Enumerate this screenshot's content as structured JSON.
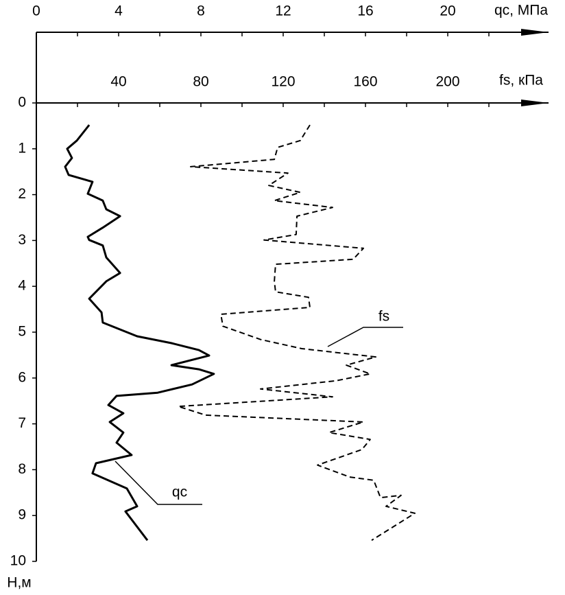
{
  "chart_data": {
    "type": "line",
    "orientation": "vertical",
    "x_label": "qc, МПа",
    "x2_label": "fs, кПа",
    "y_label": "Н,м",
    "xlim": [
      0,
      25
    ],
    "xticks": [
      0,
      4,
      8,
      12,
      16,
      20
    ],
    "xminorticks": [
      2,
      6,
      10,
      14,
      18,
      22
    ],
    "x2lim": [
      0,
      250
    ],
    "x2ticks": [
      40,
      80,
      120,
      160,
      200
    ],
    "x2minorticks": [
      20,
      60,
      100,
      140,
      180,
      220
    ],
    "ylim": [
      0,
      10
    ],
    "yticks": [
      0,
      1,
      2,
      3,
      4,
      5,
      6,
      7,
      8,
      9,
      10
    ],
    "y_inverted": true,
    "series": [
      {
        "name": "qc",
        "color": "#000000",
        "style": "solid",
        "axis": "x",
        "values": [
          2.57,
          1.97,
          1.5,
          1.73,
          1.4,
          1.57,
          2.73,
          2.5,
          3.23,
          3.4,
          4.07,
          3.23,
          2.5,
          2.57,
          3.23,
          3.4,
          4.07,
          3.4,
          2.57,
          3.17,
          3.23,
          4.9,
          6.57,
          7.9,
          8.4,
          6.57,
          7.9,
          8.63,
          7.57,
          5.9,
          3.9,
          3.5,
          4.23,
          3.57,
          4.23,
          3.9,
          4.63,
          2.9,
          2.73,
          4.4,
          4.9,
          4.33,
          5.4
        ],
        "depth": [
          0.48,
          0.82,
          1.0,
          1.2,
          1.39,
          1.57,
          1.72,
          1.98,
          2.13,
          2.32,
          2.47,
          2.72,
          2.92,
          2.99,
          3.11,
          3.37,
          3.71,
          3.89,
          4.27,
          4.57,
          4.79,
          5.09,
          5.24,
          5.39,
          5.51,
          5.72,
          5.81,
          5.91,
          6.14,
          6.32,
          6.39,
          6.59,
          6.77,
          6.96,
          7.19,
          7.41,
          7.68,
          7.86,
          8.08,
          8.41,
          8.8,
          8.91,
          9.54
        ]
      },
      {
        "name": "fs",
        "color": "#000000",
        "style": "dashed",
        "axis": "x2",
        "values": [
          133,
          128.3,
          117.3,
          115.7,
          75,
          122.3,
          113,
          128.3,
          115.7,
          144,
          126.7,
          126.3,
          110.7,
          159,
          154,
          116.3,
          115.7,
          116.3,
          132.3,
          133,
          89.7,
          90.7,
          109,
          129,
          165,
          150.7,
          162.3,
          145.7,
          109,
          144,
          69,
          82.3,
          159,
          142.3,
          162.3,
          158.3,
          136.7,
          152.3,
          164,
          167.3,
          177.3,
          170,
          184,
          163
        ],
        "depth": [
          0.48,
          0.82,
          0.97,
          1.23,
          1.39,
          1.53,
          1.8,
          1.95,
          2.13,
          2.28,
          2.47,
          2.87,
          2.99,
          3.17,
          3.41,
          3.52,
          3.89,
          4.12,
          4.24,
          4.46,
          4.61,
          4.87,
          5.16,
          5.36,
          5.54,
          5.72,
          5.91,
          6.06,
          6.24,
          6.41,
          6.62,
          6.81,
          6.96,
          7.19,
          7.34,
          7.56,
          7.9,
          8.16,
          8.23,
          8.61,
          8.56,
          8.8,
          8.95,
          9.54
        ]
      }
    ]
  }
}
